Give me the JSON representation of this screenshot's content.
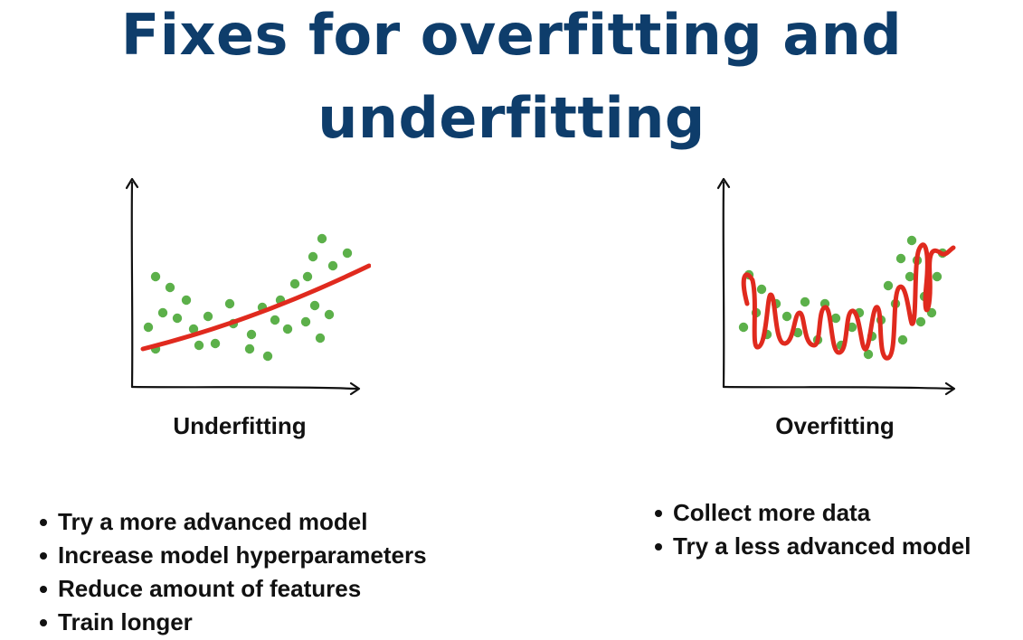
{
  "title": {
    "line1": "Fixes for overfitting and",
    "line2": "underfitting"
  },
  "colors": {
    "title": "#0e3d6b",
    "points": "#5cb04a",
    "fit_line": "#e02a1e",
    "axes": "#111111"
  },
  "panels": [
    {
      "caption": "Underfitting",
      "fixes": [
        "Try a more advanced model",
        "Increase model hyperparameters",
        "Reduce amount of features",
        "Train longer"
      ]
    },
    {
      "caption": "Overfitting",
      "fixes": [
        "Collect more data",
        "Try a less advanced model"
      ]
    }
  ]
}
